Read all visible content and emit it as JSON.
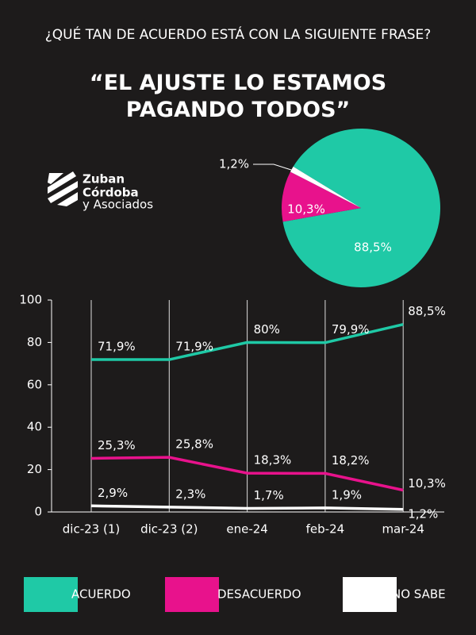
{
  "header": {
    "question": "¿QUÉ TAN DE ACUERDO ESTÁ CON LA SIGUIENTE FRASE?",
    "quote": "“EL AJUSTE LO ESTAMOS PAGANDO TODOS”"
  },
  "logo": {
    "lines": [
      "Zuban",
      "Córdoba"
    ],
    "sub": "y Asociados"
  },
  "chart_data": [
    {
      "type": "pie",
      "values": [
        88.5,
        10.3,
        1.2
      ],
      "value_labels": [
        "88,5%",
        "10,3%",
        "1,2%"
      ],
      "colors": [
        "#1fc9a6",
        "#e8128c",
        "#ffffff"
      ]
    },
    {
      "type": "line",
      "categories": [
        "dic-23 (1)",
        "dic-23 (2)",
        "ene-24",
        "feb-24",
        "mar-24"
      ],
      "series": [
        {
          "name": "ACUERDO",
          "color": "#1fc9a6",
          "values": [
            71.9,
            71.9,
            80,
            79.9,
            88.5
          ],
          "value_labels": [
            "71,9%",
            "71,9%",
            "80%",
            "79,9%",
            "88,5%"
          ]
        },
        {
          "name": "DESACUERDO",
          "color": "#e8128c",
          "values": [
            25.3,
            25.8,
            18.3,
            18.2,
            10.3
          ],
          "value_labels": [
            "25,3%",
            "25,8%",
            "18,3%",
            "18,2%",
            "10,3%"
          ]
        },
        {
          "name": "NO SABE",
          "color": "#ffffff",
          "values": [
            2.9,
            2.3,
            1.7,
            1.9,
            1.2
          ],
          "value_labels": [
            "2,9%",
            "2,3%",
            "1,7%",
            "1,9%",
            "1,2%"
          ]
        }
      ],
      "ylim": [
        0,
        100
      ],
      "yticks": [
        0,
        20,
        40,
        60,
        80,
        100
      ],
      "grid": true,
      "legend": "bottom"
    }
  ]
}
